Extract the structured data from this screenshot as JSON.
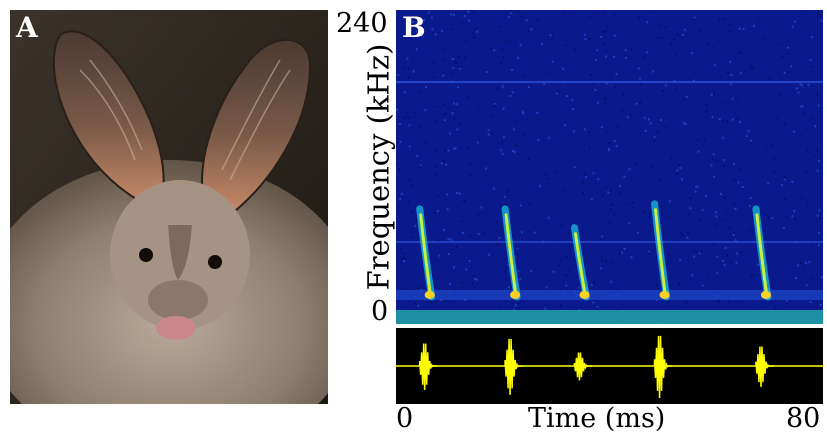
{
  "panel_a": {
    "label": "A"
  },
  "panel_b": {
    "label": "B"
  },
  "colors": {
    "spectrogram_background": "#0a1a8c",
    "oscillogram_background": "#000000",
    "oscillogram_trace": "#ffff00"
  },
  "chart_data": [
    {
      "type": "heatmap",
      "title": "",
      "ylabel": "Frequency (kHz)",
      "xlabel": "",
      "xlim": [
        0,
        80
      ],
      "ylim": [
        0,
        240
      ],
      "y_ticks": [
        "240",
        "0"
      ],
      "colormap": "jet",
      "calls": [
        {
          "time_ms": 5,
          "low_khz": 12,
          "high_khz": 82
        },
        {
          "time_ms": 21,
          "low_khz": 12,
          "high_khz": 82
        },
        {
          "time_ms": 34,
          "low_khz": 12,
          "high_khz": 67
        },
        {
          "time_ms": 49,
          "low_khz": 12,
          "high_khz": 86
        },
        {
          "time_ms": 68,
          "low_khz": 12,
          "high_khz": 82
        }
      ]
    },
    {
      "type": "line",
      "title": "",
      "xlabel": "Time (ms)",
      "ylabel": "",
      "xlim": [
        0,
        80
      ],
      "x_ticks": [
        "0",
        "80"
      ],
      "pulses": [
        {
          "time_ms": 5,
          "amplitude": 0.75
        },
        {
          "time_ms": 21,
          "amplitude": 0.9
        },
        {
          "time_ms": 34,
          "amplitude": 0.45
        },
        {
          "time_ms": 49,
          "amplitude": 1.0
        },
        {
          "time_ms": 68,
          "amplitude": 0.65
        }
      ]
    }
  ]
}
